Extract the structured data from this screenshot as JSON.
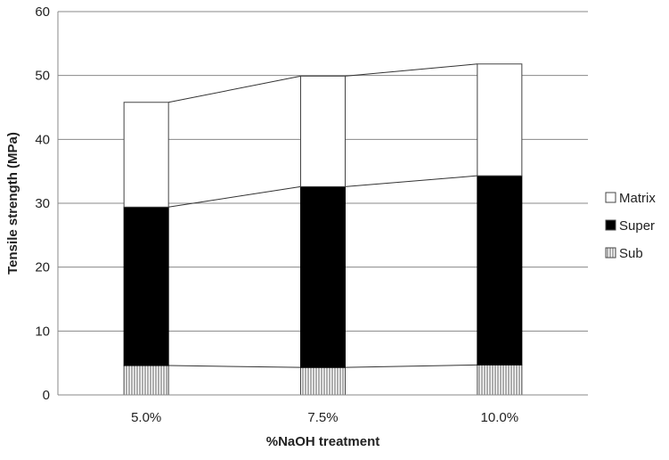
{
  "chart_data": {
    "type": "bar",
    "stacked": true,
    "categories": [
      "5.0%",
      "7.5%",
      "10.0%"
    ],
    "series": [
      {
        "name": "Sub",
        "values": [
          4.6,
          4.3,
          4.7
        ],
        "pattern": "vertical-hatch",
        "color": "#ffffff"
      },
      {
        "name": "Super",
        "values": [
          24.8,
          28.3,
          29.6
        ],
        "color": "#000000"
      },
      {
        "name": "Matrix",
        "values": [
          16.4,
          17.3,
          17.5
        ],
        "color": "#ffffff"
      }
    ],
    "series_lines": true,
    "xlabel": "%NaOH treatment",
    "ylabel": "Tensile strength (MPa)",
    "ylim": [
      0,
      60
    ],
    "yticks": [
      0,
      10,
      20,
      30,
      40,
      50,
      60
    ],
    "grid": true,
    "legend": {
      "position": "right",
      "order": [
        "Matrix",
        "Super",
        "Sub"
      ]
    }
  }
}
